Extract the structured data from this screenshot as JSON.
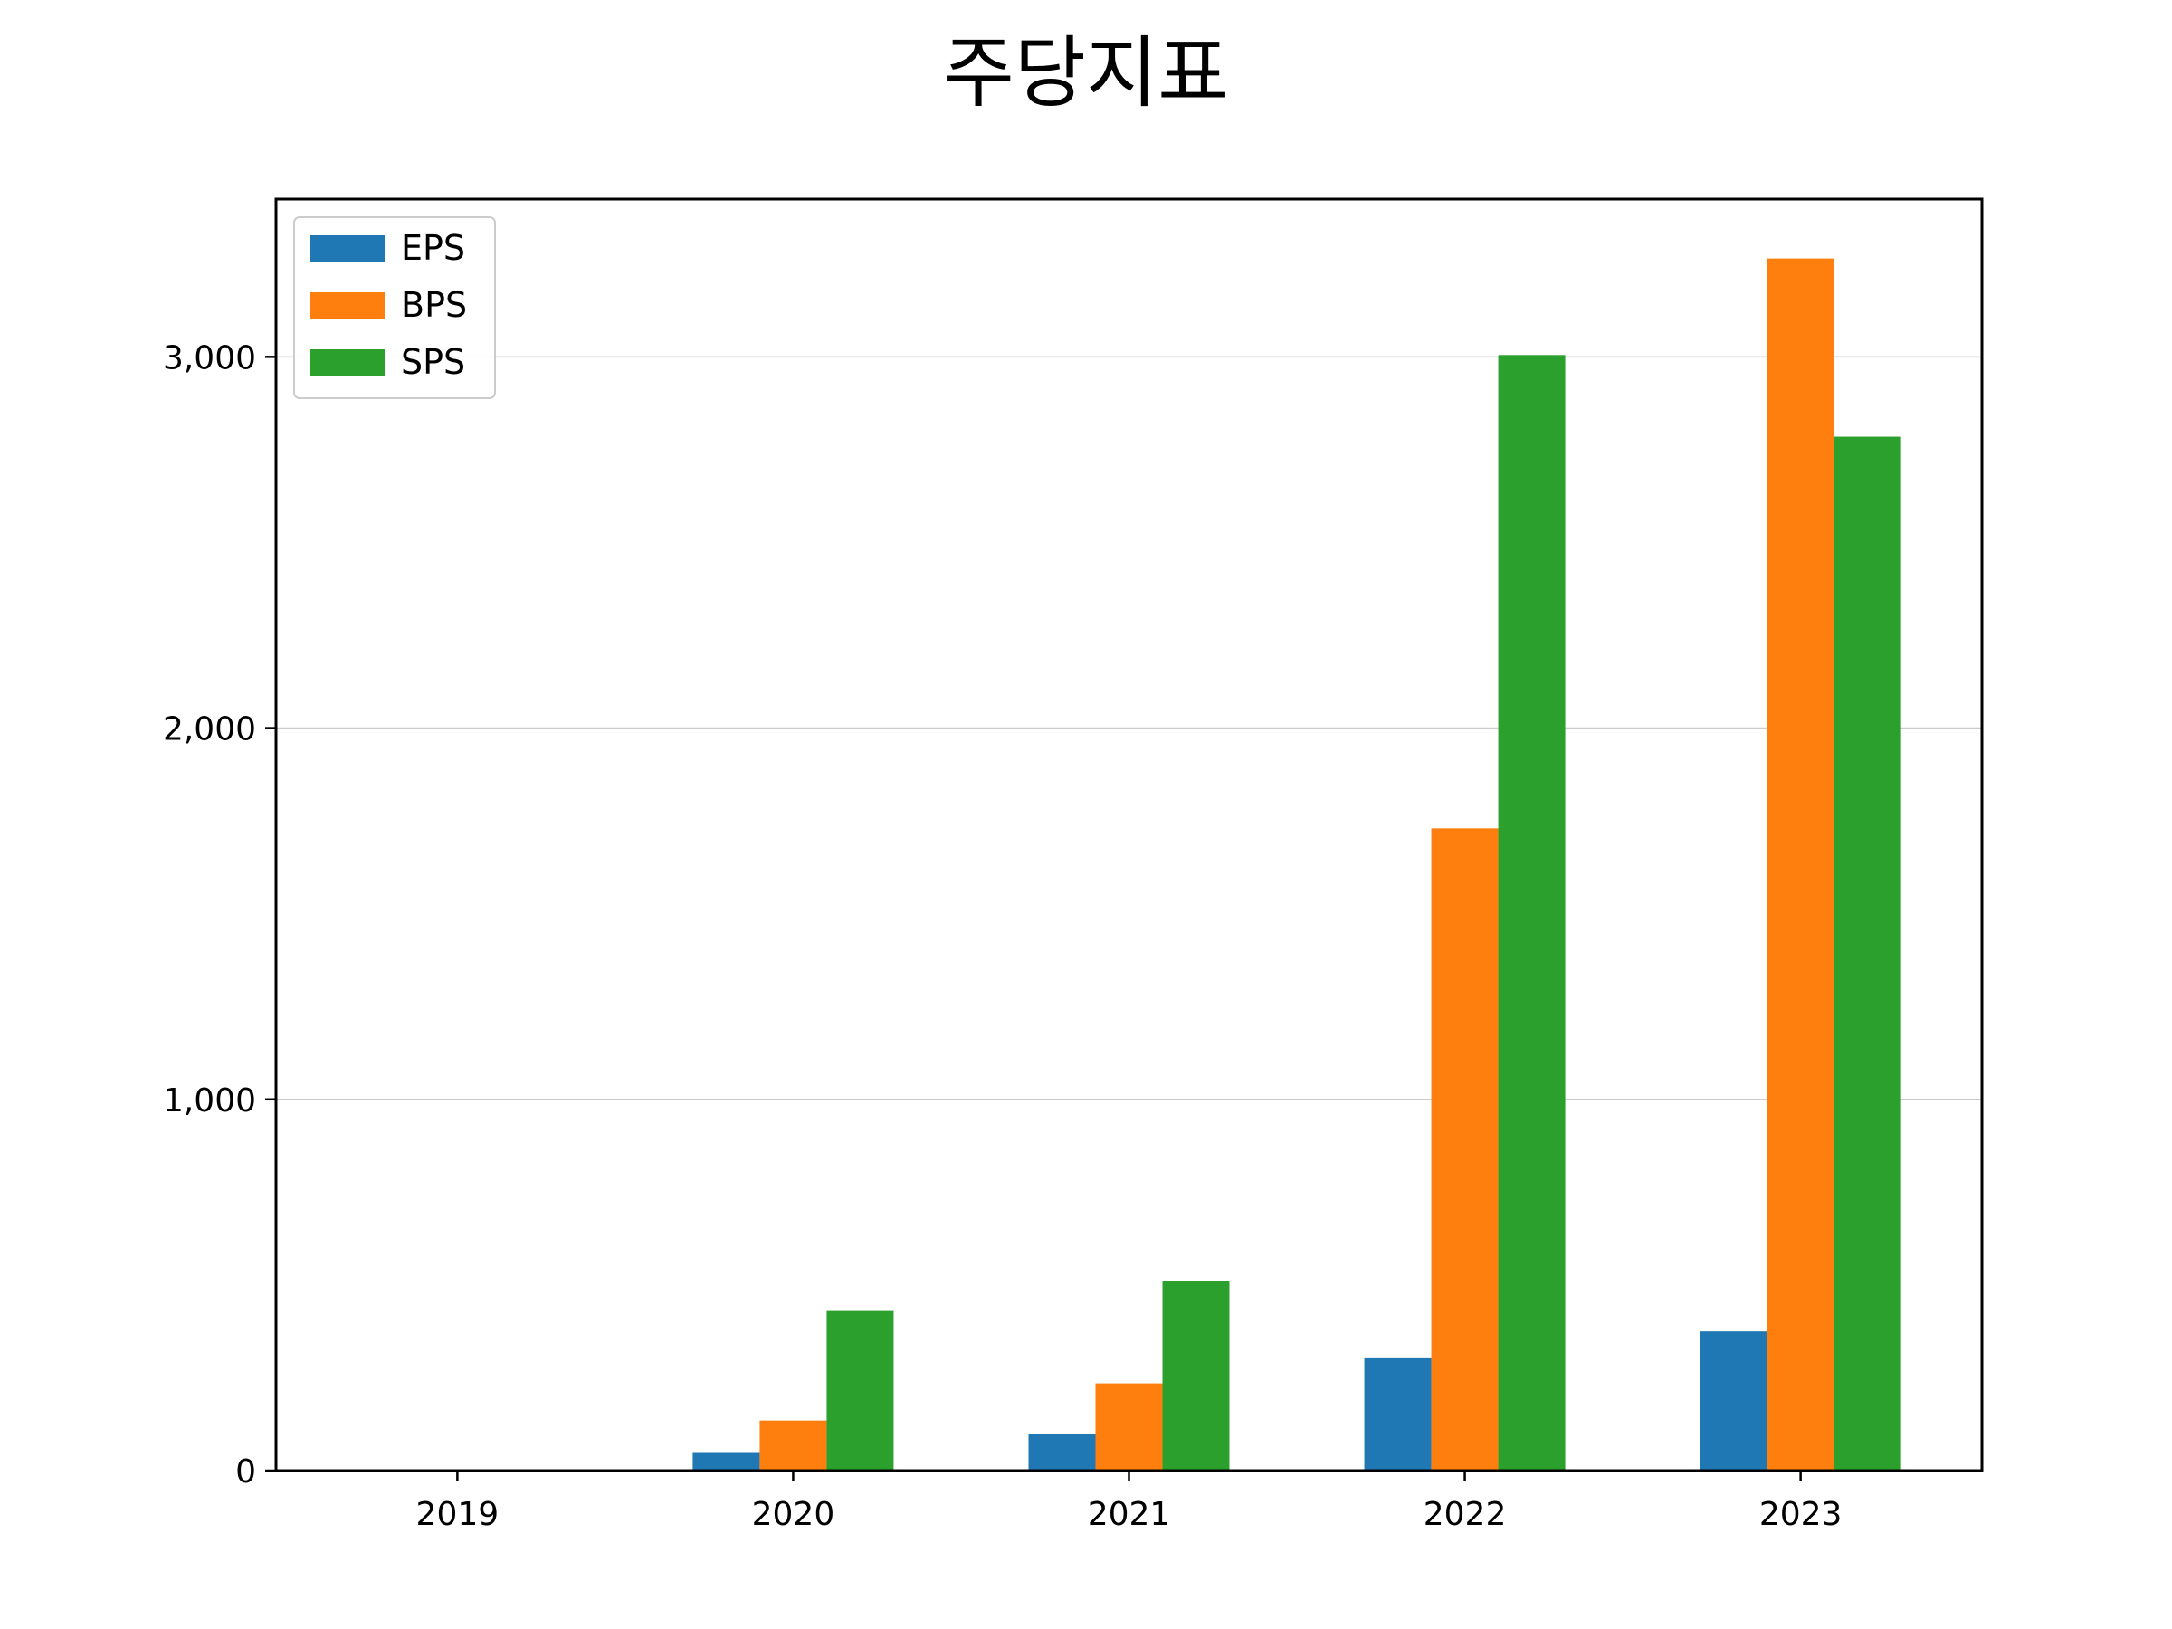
{
  "chart_data": {
    "type": "bar",
    "title": "주당지표",
    "categories": [
      "2019",
      "2020",
      "2021",
      "2022",
      "2023"
    ],
    "series": [
      {
        "name": "EPS",
        "color": "#1f77b4",
        "values": [
          0,
          50,
          100,
          305,
          375
        ]
      },
      {
        "name": "BPS",
        "color": "#ff7f0e",
        "values": [
          0,
          135,
          235,
          1730,
          3265
        ]
      },
      {
        "name": "SPS",
        "color": "#2ca02c",
        "values": [
          0,
          430,
          510,
          3005,
          2785
        ]
      }
    ],
    "ylim": [
      0,
      3425
    ],
    "yticks": [
      0,
      1000,
      2000,
      3000
    ],
    "ytick_labels": [
      "0",
      "1,000",
      "2,000",
      "3,000"
    ],
    "grid": "horizontal",
    "legend_position": "upper-left"
  }
}
